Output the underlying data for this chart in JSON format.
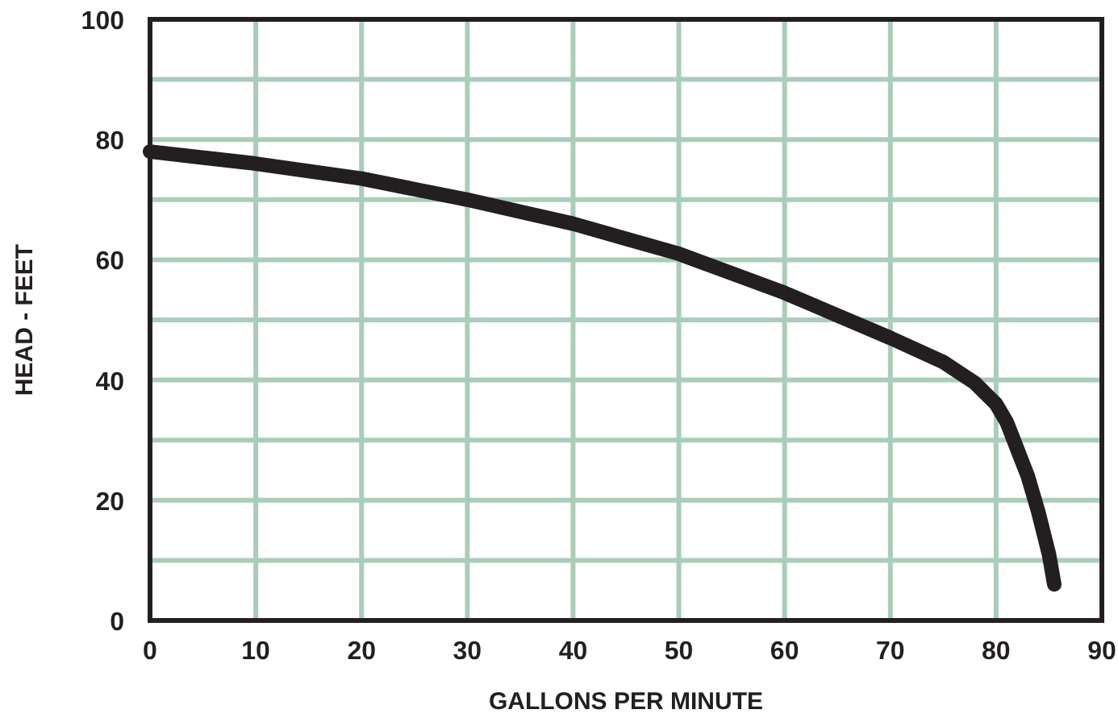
{
  "chart_data": {
    "type": "line",
    "xlabel": "GALLONS PER MINUTE",
    "ylabel": "HEAD - FEET",
    "series": [
      {
        "color": "#231f20",
        "x": [
          0,
          10,
          20,
          30,
          40,
          50,
          60,
          70,
          75,
          78,
          80,
          81,
          82,
          83,
          84,
          85,
          85.5
        ],
        "values": [
          78,
          76,
          73.5,
          70,
          66,
          61,
          54.5,
          47,
          43,
          39.5,
          36,
          33,
          28.5,
          24,
          18,
          11,
          6
        ]
      }
    ],
    "xlim": [
      0,
      90
    ],
    "xticks": [
      0,
      10,
      20,
      30,
      40,
      50,
      60,
      70,
      80,
      90
    ],
    "ylim": [
      0,
      100
    ],
    "yticks": [
      0,
      {
        "value": 10,
        "label": null
      },
      20,
      {
        "value": 30,
        "label": null
      },
      40,
      {
        "value": 50,
        "label": null
      },
      60,
      {
        "value": 70,
        "label": null
      },
      80,
      {
        "value": 90,
        "label": null
      },
      100
    ],
    "grid": true,
    "marker": "none",
    "line_style": "solid"
  }
}
